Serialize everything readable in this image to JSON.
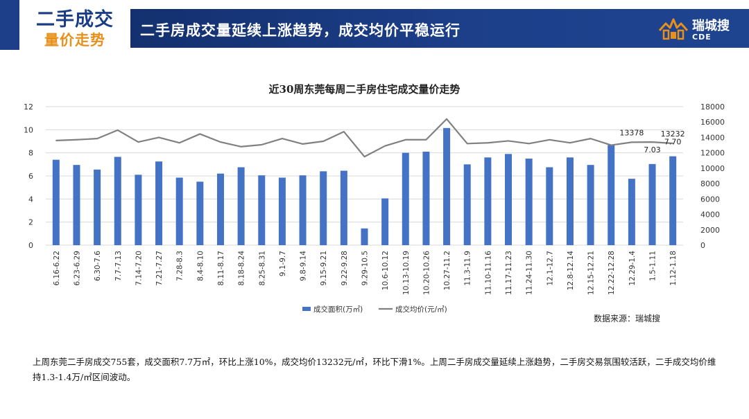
{
  "header": {
    "section_title_line1": "二手成交",
    "section_title_line2": "量价走势",
    "headline": "二手房成交量延续上涨趋势，成交均价平稳运行",
    "logo_name": "瑞城搜",
    "logo_sub": "CDE",
    "logo_icon": "house-roof-icon"
  },
  "colors": {
    "navy": "#1d3f8a",
    "orange": "#e8901c",
    "bar": "#4472c4",
    "line": "#808080"
  },
  "chart_data": {
    "type": "bar",
    "title": "近30周东莞每周二手房住宅成交量价走势",
    "categories": [
      "6.16-6.22",
      "6.23-6.29",
      "6.30-7.6",
      "7.7-7.13",
      "7.14-7.20",
      "7.21-7.27",
      "7.28-8.3",
      "8.4-8.10",
      "8.11-8.17",
      "8.18-8.24",
      "8.25-8.31",
      "9.1-9.7",
      "9.8-9.14",
      "9.15-9.21",
      "9.22-9.28",
      "9.29-10.5",
      "10.6-10.12",
      "10.13-10.19",
      "10.20-10.26",
      "10.27-11.2",
      "11.3-11.9",
      "11.10-11.16",
      "11.17-11.23",
      "11.24-11.30",
      "12.1-12.7",
      "12.8-12.14",
      "12.15-12.21",
      "12.22-12.28",
      "12.29-1.4",
      "1.5-1.11",
      "1.12-1.18"
    ],
    "series": [
      {
        "name": "成交面积(万㎡)",
        "type": "bar",
        "axis": "left",
        "values": [
          7.4,
          6.95,
          6.55,
          7.65,
          6.1,
          7.25,
          5.85,
          5.5,
          6.2,
          6.75,
          6.05,
          5.85,
          6.05,
          6.4,
          6.45,
          1.45,
          4.05,
          8.0,
          8.1,
          10.15,
          7.0,
          7.6,
          7.9,
          7.5,
          6.75,
          7.6,
          6.95,
          8.7,
          5.75,
          7.03,
          7.7
        ]
      },
      {
        "name": "成交均价(元/㎡)",
        "type": "line",
        "axis": "right",
        "values": [
          13600,
          13700,
          13850,
          14950,
          13400,
          14000,
          13300,
          14450,
          13400,
          12800,
          13050,
          13850,
          13150,
          13500,
          14750,
          11500,
          12900,
          13700,
          13700,
          16400,
          13200,
          13300,
          13550,
          13200,
          13700,
          13300,
          13850,
          13000,
          13378,
          13400,
          13232
        ]
      }
    ],
    "data_labels": [
      {
        "series": 0,
        "index": 29,
        "text": "7.03"
      },
      {
        "series": 0,
        "index": 30,
        "text": "7.70"
      },
      {
        "series": 1,
        "index": 28,
        "text": "13378"
      },
      {
        "series": 1,
        "index": 30,
        "text": "13232"
      }
    ],
    "ylim_left": [
      0,
      12
    ],
    "yticks_left": [
      0,
      2,
      4,
      6,
      8,
      10,
      12
    ],
    "ylim_right": [
      0,
      18000
    ],
    "yticks_right": [
      0,
      2000,
      4000,
      6000,
      8000,
      10000,
      12000,
      14000,
      16000,
      18000
    ],
    "grid": true,
    "legend_position": "bottom"
  },
  "source_note": "数据来源：瑞城搜",
  "description": "上周东莞二手房成交755套，成交面积7.7万㎡，环比上涨10%，成交均价13232元/㎡，环比下滑1%。上周二手房成交量延续上涨趋势，二手房交易氛围较活跃，二手成交均价维持1.3-1.4万/㎡区间波动。"
}
